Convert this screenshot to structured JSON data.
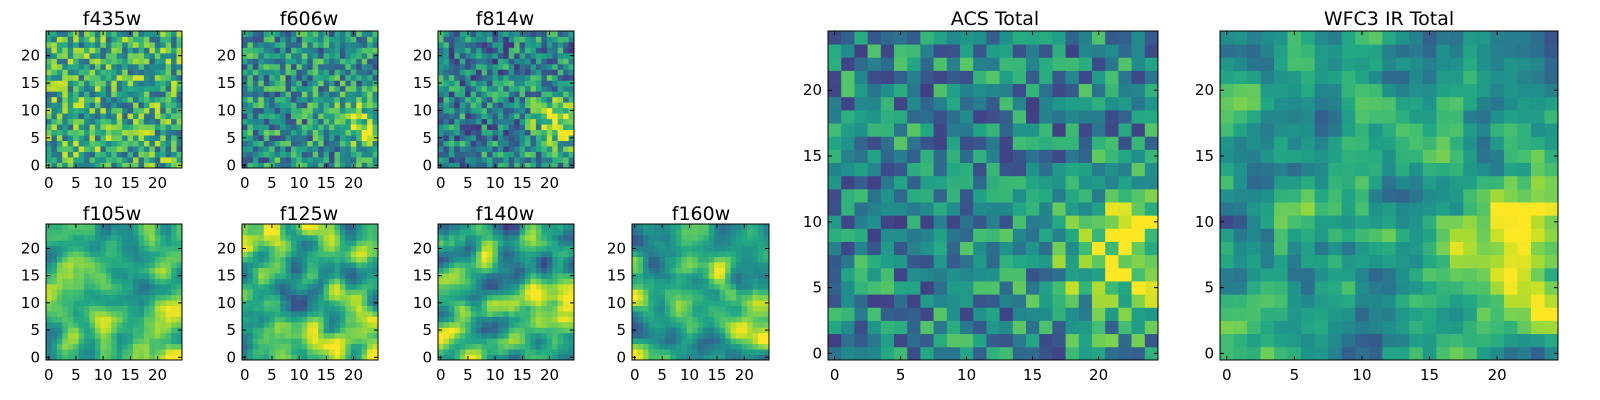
{
  "chart_data": {
    "type": "heatmap",
    "colormap": "viridis",
    "grid_size": 25,
    "seed_note": "pixel values approximate (noisy 25x25 images)",
    "panels": [
      {
        "id": "f435w",
        "title": "f435w",
        "xticks": [
          0,
          5,
          10,
          15,
          20
        ],
        "yticks": [
          0,
          5,
          10,
          15,
          20
        ],
        "mode": "noise",
        "base": 0.62,
        "noise": 0.32,
        "blob": 0.0,
        "smooth": 0
      },
      {
        "id": "f606w",
        "title": "f606w",
        "xticks": [
          0,
          5,
          10,
          15,
          20
        ],
        "yticks": [
          0,
          5,
          10,
          15,
          20
        ],
        "mode": "noise",
        "base": 0.5,
        "noise": 0.3,
        "blob": 0.3,
        "smooth": 0
      },
      {
        "id": "f814w",
        "title": "f814w",
        "xticks": [
          0,
          5,
          10,
          15,
          20
        ],
        "yticks": [
          0,
          5,
          10,
          15,
          20
        ],
        "mode": "noise",
        "base": 0.44,
        "noise": 0.3,
        "blob": 0.45,
        "smooth": 0
      },
      {
        "id": "f105w",
        "title": "f105w",
        "xticks": [
          0,
          5,
          10,
          15,
          20
        ],
        "yticks": [
          0,
          5,
          10,
          15,
          20
        ],
        "mode": "smooth",
        "base": 0.62,
        "noise": 0.45,
        "blob": 0.25,
        "smooth": 2
      },
      {
        "id": "f125w",
        "title": "f125w",
        "xticks": [
          0,
          5,
          10,
          15,
          20
        ],
        "yticks": [
          0,
          5,
          10,
          15,
          20
        ],
        "mode": "smooth",
        "base": 0.62,
        "noise": 0.45,
        "blob": 0.2,
        "smooth": 2
      },
      {
        "id": "f140w",
        "title": "f140w",
        "xticks": [
          0,
          5,
          10,
          15,
          20
        ],
        "yticks": [
          0,
          5,
          10,
          15,
          20
        ],
        "mode": "smooth",
        "base": 0.6,
        "noise": 0.45,
        "blob": 0.25,
        "smooth": 2
      },
      {
        "id": "f160w",
        "title": "f160w",
        "xticks": [
          0,
          5,
          10,
          15,
          20
        ],
        "yticks": [
          0,
          5,
          10,
          15,
          20
        ],
        "mode": "smooth",
        "base": 0.6,
        "noise": 0.45,
        "blob": 0.25,
        "smooth": 2
      },
      {
        "id": "acs_total",
        "title": "ACS Total",
        "xticks": [
          0,
          5,
          10,
          15,
          20
        ],
        "yticks": [
          0,
          5,
          10,
          15,
          20
        ],
        "mode": "noise",
        "base": 0.46,
        "noise": 0.28,
        "blob": 0.5,
        "smooth": 0
      },
      {
        "id": "wfc3_total",
        "title": "WFC3 IR Total",
        "xticks": [
          0,
          5,
          10,
          15,
          20
        ],
        "yticks": [
          0,
          5,
          10,
          15,
          20
        ],
        "mode": "smooth",
        "base": 0.55,
        "noise": 0.4,
        "blob": 0.35,
        "smooth": 1
      }
    ]
  }
}
